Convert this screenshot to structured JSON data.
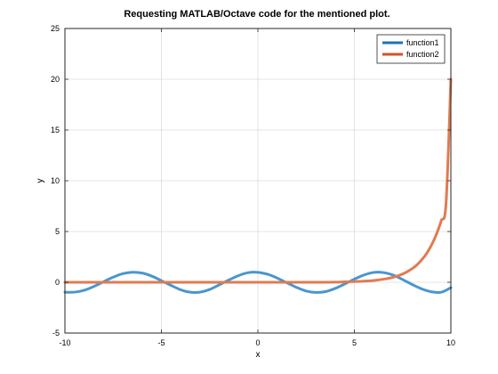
{
  "chart_data": {
    "type": "line",
    "title": "Requesting MATLAB/Octave code for the mentioned plot.",
    "xlabel": "x",
    "ylabel": "y",
    "xlim": [
      -10,
      10
    ],
    "ylim": [
      -5,
      25
    ],
    "xticks": [
      -10,
      -5,
      0,
      5,
      10
    ],
    "yticks": [
      -5,
      0,
      5,
      10,
      15,
      20,
      25
    ],
    "grid": true,
    "legend_position": "top-right",
    "series": [
      {
        "name": "function1",
        "color": "#4a96cf",
        "legend_color": "#1f72b2",
        "x": [
          -10,
          -9.5,
          -9,
          -8.5,
          -8,
          -7.5,
          -7,
          -6.5,
          -6,
          -5.5,
          -5,
          -4.5,
          -4,
          -3.5,
          -3,
          -2.5,
          -2,
          -1.5,
          -1,
          -0.5,
          0,
          0.5,
          1,
          1.5,
          2,
          2.5,
          3,
          3.5,
          4,
          4.5,
          5,
          5.5,
          6,
          6.5,
          7,
          7.5,
          8,
          8.5,
          9,
          9.5,
          10
        ],
        "y": [
          -0.98,
          -0.97,
          -0.78,
          -0.41,
          0.05,
          0.5,
          0.85,
          0.99,
          0.91,
          0.61,
          0.16,
          -0.31,
          -0.74,
          -0.98,
          -0.97,
          -0.71,
          -0.25,
          0.23,
          0.66,
          0.95,
          0.98,
          0.79,
          0.42,
          -0.05,
          -0.5,
          -0.86,
          -1.0,
          -0.92,
          -0.61,
          -0.17,
          0.31,
          0.72,
          0.97,
          0.96,
          0.72,
          0.27,
          -0.22,
          -0.66,
          -0.94,
          -0.98,
          -0.53
        ]
      },
      {
        "name": "function2",
        "color": "#e07b50",
        "legend_color": "#d1532b",
        "x": [
          -10,
          -9,
          -8,
          -7,
          -6,
          -5,
          -4,
          -3,
          -2,
          -1,
          0,
          1,
          2,
          3,
          4,
          4.5,
          5,
          5.5,
          6,
          6.5,
          7,
          7.5,
          8,
          8.25,
          8.5,
          8.75,
          9,
          9.25,
          9.5,
          9.75,
          10
        ],
        "y": [
          0,
          0,
          0,
          0,
          0,
          0,
          0,
          0,
          0,
          0,
          0,
          0,
          0,
          0,
          0.01,
          0.04,
          0.07,
          0.11,
          0.18,
          0.3,
          0.49,
          0.81,
          1.35,
          1.73,
          2.23,
          2.86,
          3.68,
          4.72,
          6.06,
          7.78,
          20.0
        ]
      }
    ]
  }
}
